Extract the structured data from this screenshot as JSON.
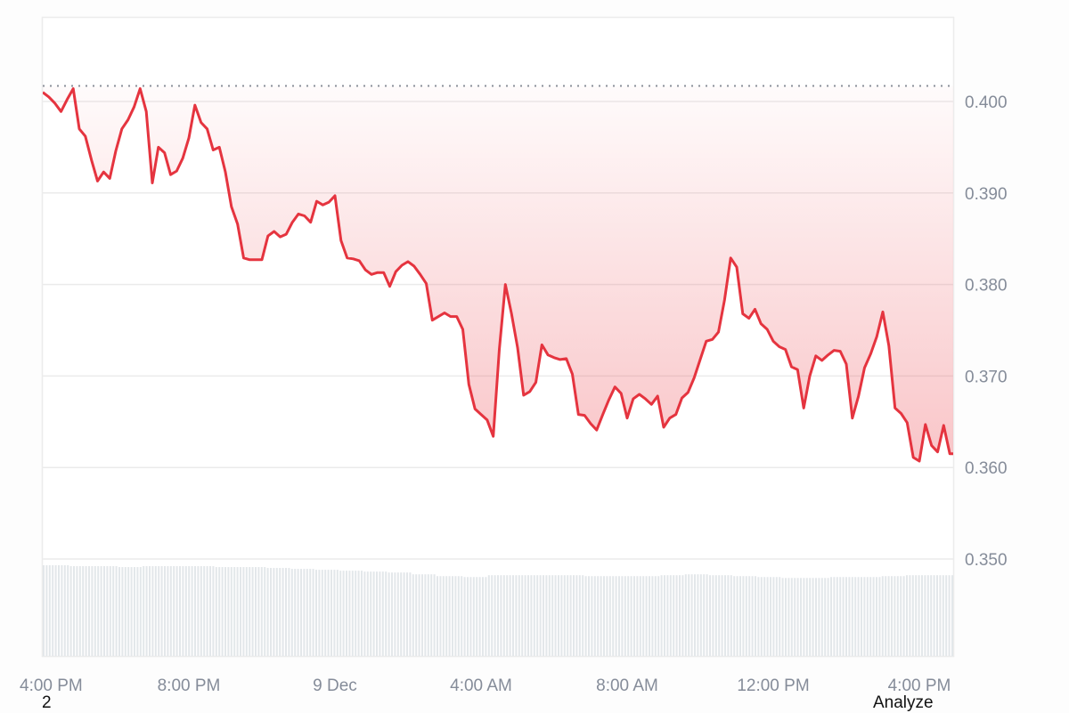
{
  "chart_data": {
    "type": "line",
    "title": "",
    "xlabel": "",
    "ylabel": "",
    "x_start": "4:00 PM",
    "interval_minutes": 10,
    "ylim": [
      0.3406,
      0.4093
    ],
    "grid": true,
    "y_ticks": [
      {
        "value": 0.4,
        "label": "0.400"
      },
      {
        "value": 0.39,
        "label": "0.390"
      },
      {
        "value": 0.38,
        "label": "0.380"
      },
      {
        "value": 0.37,
        "label": "0.370"
      },
      {
        "value": 0.36,
        "label": "0.360"
      },
      {
        "value": 0.35,
        "label": "0.350"
      }
    ],
    "x_ticks": [
      {
        "hours_from_start": 0,
        "label": "4:00 PM"
      },
      {
        "hours_from_start": 4,
        "label": "8:00 PM"
      },
      {
        "hours_from_start": 8,
        "label": "9 Dec"
      },
      {
        "hours_from_start": 12,
        "label": "4:00 AM"
      },
      {
        "hours_from_start": 16,
        "label": "8:00 AM"
      },
      {
        "hours_from_start": 20,
        "label": "12:00 PM"
      },
      {
        "hours_from_start": 24,
        "label": "4:00 PM"
      }
    ],
    "reference_price": 0.4017,
    "values": [
      0.401,
      0.4005,
      0.3998,
      0.3989,
      0.4002,
      0.4014,
      0.397,
      0.3962,
      0.3936,
      0.3913,
      0.3923,
      0.3916,
      0.3946,
      0.397,
      0.398,
      0.3994,
      0.4014,
      0.3989,
      0.3911,
      0.395,
      0.3944,
      0.392,
      0.3924,
      0.3938,
      0.396,
      0.3996,
      0.3977,
      0.397,
      0.3947,
      0.395,
      0.3923,
      0.3885,
      0.3866,
      0.3829,
      0.3827,
      0.3827,
      0.3827,
      0.3853,
      0.3858,
      0.3852,
      0.3855,
      0.3868,
      0.3877,
      0.3875,
      0.3868,
      0.3891,
      0.3887,
      0.389,
      0.3897,
      0.3848,
      0.3829,
      0.3828,
      0.3826,
      0.3816,
      0.3811,
      0.3813,
      0.3813,
      0.3798,
      0.3814,
      0.3821,
      0.3825,
      0.382,
      0.3811,
      0.3801,
      0.3761,
      0.3765,
      0.3769,
      0.3765,
      0.3765,
      0.3751,
      0.3691,
      0.3664,
      0.3658,
      0.3652,
      0.3634,
      0.3729,
      0.38,
      0.3768,
      0.3731,
      0.3679,
      0.3683,
      0.3693,
      0.3734,
      0.3723,
      0.372,
      0.3718,
      0.3719,
      0.3702,
      0.3658,
      0.3657,
      0.3648,
      0.3641,
      0.3658,
      0.3674,
      0.3688,
      0.3681,
      0.3654,
      0.3675,
      0.368,
      0.3675,
      0.3669,
      0.3678,
      0.3644,
      0.3654,
      0.3658,
      0.3676,
      0.3682,
      0.3698,
      0.3718,
      0.3738,
      0.374,
      0.3748,
      0.3783,
      0.3829,
      0.3819,
      0.3768,
      0.3763,
      0.3773,
      0.3757,
      0.3751,
      0.3738,
      0.3732,
      0.3729,
      0.371,
      0.3707,
      0.3665,
      0.37,
      0.3722,
      0.3717,
      0.3723,
      0.3728,
      0.3727,
      0.3713,
      0.3654,
      0.3678,
      0.3709,
      0.3724,
      0.3743,
      0.377,
      0.3733,
      0.3665,
      0.3659,
      0.3649,
      0.3611,
      0.3607,
      0.3647,
      0.3624,
      0.3617,
      0.3646,
      0.3615
    ],
    "volume_relative": [
      1.0,
      0.99,
      0.99,
      0.98,
      0.99,
      0.99,
      0.99,
      0.98,
      0.98,
      0.97,
      0.96,
      0.95,
      0.94,
      0.93,
      0.92,
      0.9,
      0.88,
      0.87,
      0.89,
      0.89,
      0.89,
      0.89,
      0.88,
      0.88,
      0.88,
      0.89,
      0.9,
      0.89,
      0.88,
      0.87,
      0.86,
      0.86,
      0.87,
      0.87,
      0.88,
      0.89,
      0.89
    ],
    "colors": {
      "line": "#e5343f",
      "fill": "#ea3943",
      "grid": "#ebebeb",
      "volume": "#e3e7ea",
      "axis_text": "#858c99",
      "reference": "#8a8f98"
    }
  },
  "overlay": {
    "page_number": "2",
    "analyze_label": "Analyze"
  }
}
